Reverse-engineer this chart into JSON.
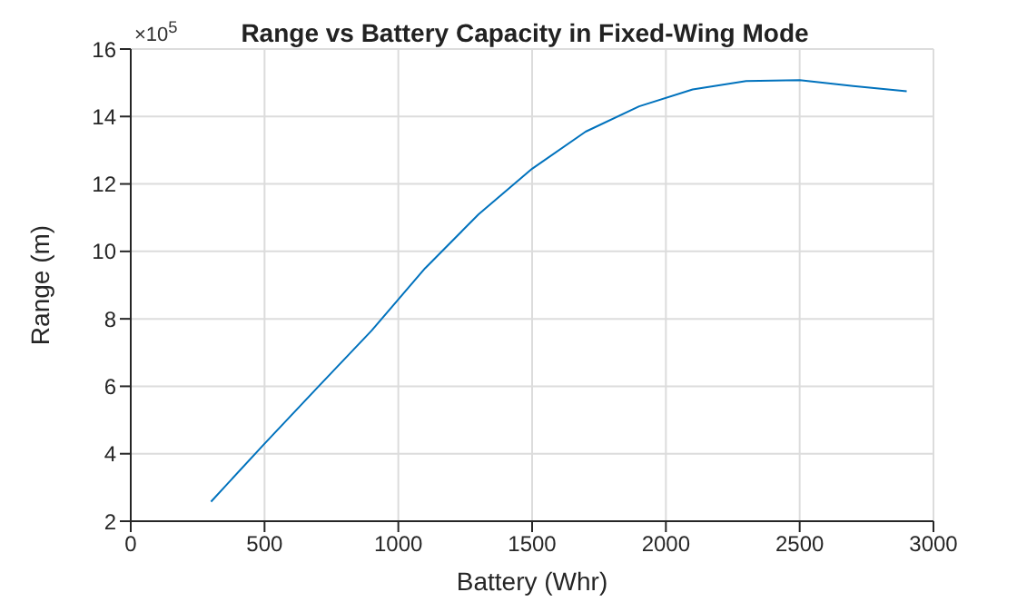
{
  "chart_data": {
    "type": "line",
    "title": "Range vs Battery Capacity in Fixed-Wing Mode",
    "xlabel": "Battery (Whr)",
    "ylabel": "Range (m)",
    "annotations": [
      "×10$^{5}$"
    ],
    "x": [
      300,
      500,
      700,
      900,
      1100,
      1300,
      1500,
      1700,
      1900,
      2100,
      2300,
      2500,
      2700,
      2900
    ],
    "series": [
      {
        "color": "#0072bd",
        "values": [
          2.58,
          4.3,
          5.98,
          7.65,
          9.5,
          11.1,
          12.45,
          13.55,
          14.3,
          14.8,
          15.05,
          15.08,
          14.9,
          14.75
        ]
      }
    ],
    "xlim": [
      0,
      3000
    ],
    "xticks": [
      0,
      500,
      1000,
      1500,
      2000,
      2500,
      3000
    ],
    "ylim": [
      2,
      16
    ],
    "yticks": [
      2,
      4,
      6,
      8,
      10,
      12,
      14,
      16
    ],
    "grid": true,
    "legend": false,
    "marker": "none",
    "line_style": "solid"
  }
}
